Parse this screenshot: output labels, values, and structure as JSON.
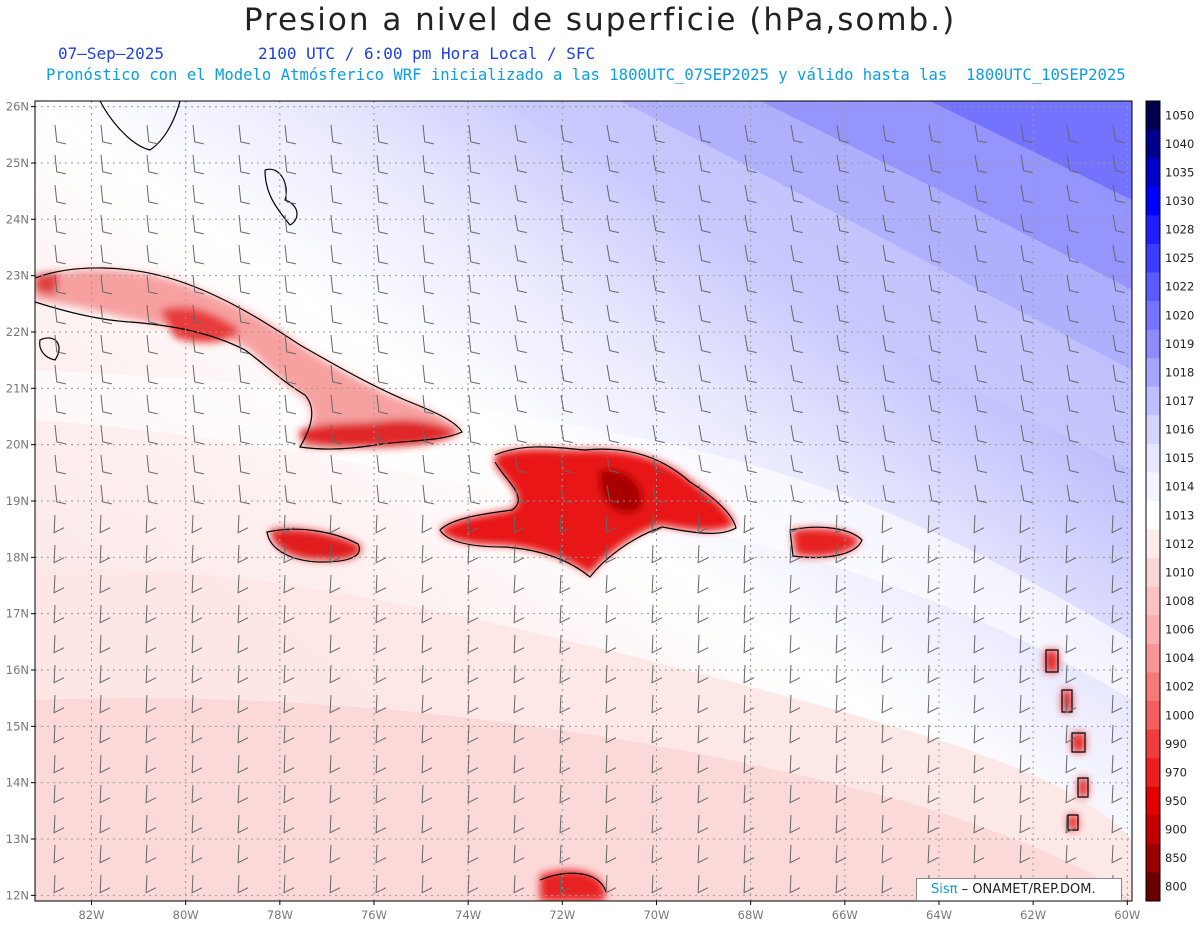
{
  "title": "Presion a nivel de superficie (hPa,somb.)",
  "date": "07–Sep–2025",
  "time_info": "2100 UTC / 6:00 pm Hora Local / SFC",
  "forecast_info": "Pronóstico con el Modelo Atmósferico WRF inicializado a las 1800UTC_07SEP2025 y válido hasta las  1800UTC_10SEP2025",
  "credit": {
    "brand": "Sisπ",
    "org": "– ONAMET/REP.DOM."
  },
  "map": {
    "lon_range": [
      -83.2,
      -59.9
    ],
    "lat_range": [
      11.9,
      26.1
    ],
    "lon_ticks": [
      "82W",
      "80W",
      "78W",
      "76W",
      "74W",
      "72W",
      "70W",
      "68W",
      "66W",
      "64W",
      "62W",
      "60W"
    ],
    "lat_ticks": [
      "12N",
      "13N",
      "14N",
      "15N",
      "16N",
      "17N",
      "18N",
      "19N",
      "20N",
      "21N",
      "22N",
      "23N",
      "24N",
      "25N",
      "26N"
    ],
    "land_color": "#e81a1a",
    "high_color": "#6f6ffd",
    "low_bg_color": "#fdeaea"
  },
  "colorbar": {
    "levels": [
      "1050",
      "1040",
      "1035",
      "1030",
      "1028",
      "1025",
      "1022",
      "1020",
      "1019",
      "1018",
      "1017",
      "1016",
      "1015",
      "1014",
      "1013",
      "1012",
      "1010",
      "1008",
      "1006",
      "1004",
      "1002",
      "1000",
      "990",
      "970",
      "950",
      "900",
      "850",
      "800"
    ],
    "colors": [
      "#00004d",
      "#00008c",
      "#0000c8",
      "#0000ff",
      "#1f1ffe",
      "#3c3cfd",
      "#5a5afd",
      "#7373fd",
      "#8c8cfd",
      "#a5a5fd",
      "#bebefe",
      "#d4d4fe",
      "#e6e6fe",
      "#f4f4ff",
      "#ffffff",
      "#fdeaea",
      "#fcd6d6",
      "#fbc2c2",
      "#faaeae",
      "#f89696",
      "#f67a7a",
      "#f45e5e",
      "#f03c3c",
      "#ec1f1f",
      "#e00000",
      "#c00000",
      "#980000",
      "#6a0000"
    ]
  }
}
